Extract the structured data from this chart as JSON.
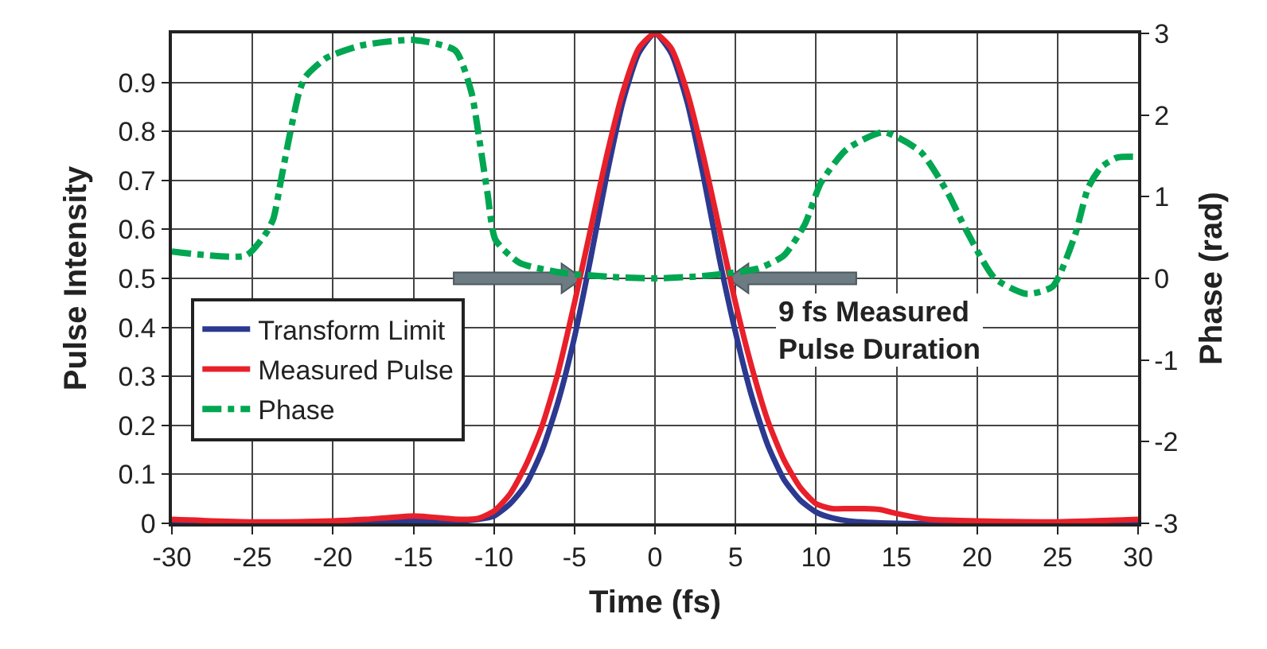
{
  "chart_data": {
    "type": "line",
    "xlabel": "Time (fs)",
    "ylabel": "Pulse Intensity",
    "y2label": "Phase (rad)",
    "xlim": [
      -30,
      30
    ],
    "xticks": [
      -30,
      -25,
      -20,
      -15,
      -10,
      -5,
      0,
      5,
      10,
      15,
      20,
      25,
      30
    ],
    "ylim": [
      0,
      1
    ],
    "yticks": [
      0,
      0.1,
      0.2,
      0.3,
      0.4,
      0.5,
      0.6,
      0.7,
      0.8,
      0.9
    ],
    "y2lim": [
      -3,
      3
    ],
    "y2ticks": [
      -3,
      -2,
      -1,
      0,
      1,
      2,
      3
    ],
    "grid": true,
    "legend": "left",
    "marker": "none",
    "series": [
      {
        "name": "Transform Limit",
        "color": "#2b3990",
        "line_style": "solid",
        "x": [
          -30,
          -25,
          -20,
          -15,
          -12,
          -11,
          -10,
          -9,
          -8,
          -7,
          -6,
          -5,
          -4,
          -3,
          -2,
          -1,
          0,
          1,
          2,
          3,
          4,
          5,
          6,
          7,
          8,
          9,
          10,
          11,
          12,
          15,
          20,
          25,
          30
        ],
        "values": [
          0,
          0,
          0,
          0.005,
          0.005,
          0.008,
          0.015,
          0.04,
          0.08,
          0.15,
          0.25,
          0.38,
          0.54,
          0.71,
          0.86,
          0.96,
          1,
          0.96,
          0.86,
          0.71,
          0.54,
          0.39,
          0.26,
          0.16,
          0.09,
          0.048,
          0.023,
          0.011,
          0.005,
          0,
          0,
          0,
          0
        ]
      },
      {
        "name": "Measured Pulse",
        "color": "#e8202a",
        "line_style": "solid",
        "x": [
          -30,
          -25,
          -20,
          -18,
          -15,
          -12,
          -11,
          -10,
          -9,
          -8,
          -7,
          -6,
          -5,
          -4,
          -3,
          -2,
          -1,
          0,
          1,
          2,
          3,
          4,
          5,
          6,
          7,
          8,
          9,
          10,
          11,
          12,
          13,
          14,
          15,
          17,
          20,
          25,
          30
        ],
        "values": [
          0.008,
          0.003,
          0.005,
          0.008,
          0.015,
          0.008,
          0.01,
          0.025,
          0.06,
          0.12,
          0.2,
          0.31,
          0.45,
          0.6,
          0.75,
          0.88,
          0.97,
          1,
          0.97,
          0.88,
          0.75,
          0.6,
          0.45,
          0.32,
          0.21,
          0.13,
          0.074,
          0.04,
          0.03,
          0.03,
          0.03,
          0.028,
          0.02,
          0.008,
          0.005,
          0.003,
          0.008
        ]
      },
      {
        "name": "Phase",
        "color": "#00a651",
        "line_style": "dashdot",
        "axis": "y2",
        "x": [
          -30,
          -25.4,
          -24.2,
          -23.7,
          -23.2,
          -22.7,
          -22.1,
          -21.7,
          -20.4,
          -18.3,
          -15,
          -12.4,
          -11.4,
          -10.9,
          -10.4,
          -9.9,
          -8.4,
          -5.8,
          -2.9,
          0,
          3,
          6.4,
          8,
          9.3,
          10.3,
          11.9,
          14.2,
          16.5,
          18.2,
          19.3,
          21.1,
          23.1,
          24.7,
          26.1,
          26.9,
          27.7,
          28.7,
          30
        ],
        "values": [
          0.33,
          0.28,
          0.54,
          0.73,
          1.23,
          1.74,
          2.28,
          2.47,
          2.7,
          2.85,
          2.92,
          2.79,
          2.28,
          1.69,
          1.04,
          0.47,
          0.19,
          0.07,
          0.02,
          0,
          0.03,
          0.12,
          0.28,
          0.66,
          1.17,
          1.58,
          1.79,
          1.55,
          1.04,
          0.6,
          0,
          -0.19,
          -0.1,
          0.54,
          1.11,
          1.36,
          1.48,
          1.49
        ]
      }
    ],
    "annotations": [
      {
        "text": "9 fs Measured\nPulse Duration",
        "x": 4.5,
        "y": 0.5
      }
    ]
  }
}
